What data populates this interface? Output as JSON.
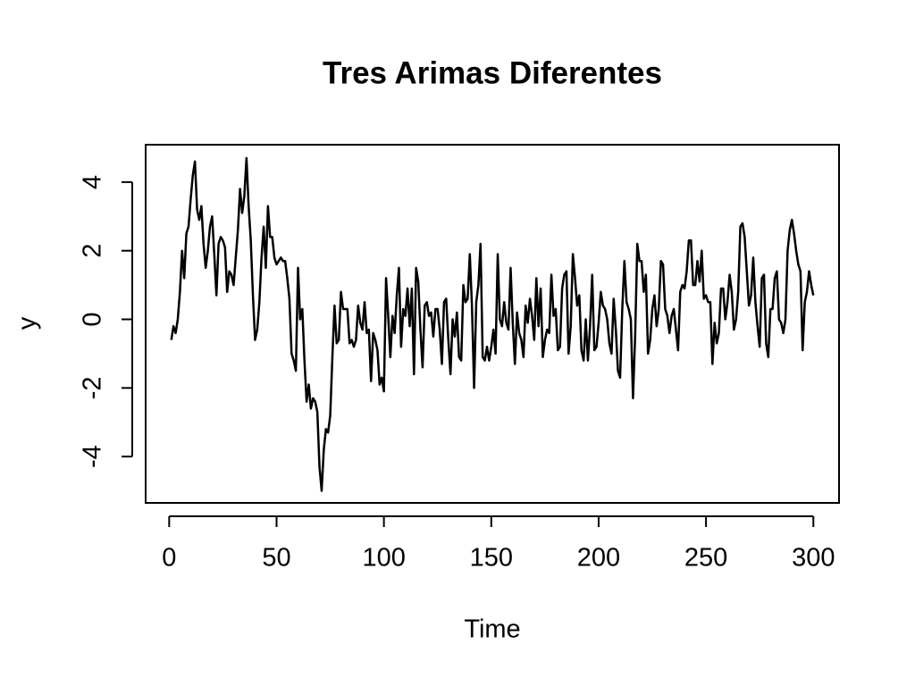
{
  "chart_data": {
    "type": "line",
    "title": "Tres Arimas Diferentes",
    "xlabel": "Time",
    "ylabel": "y",
    "x": [
      1,
      2,
      3,
      4,
      5,
      6,
      7,
      8,
      9,
      10,
      11,
      12,
      13,
      14,
      15,
      16,
      17,
      18,
      19,
      20,
      21,
      22,
      23,
      24,
      25,
      26,
      27,
      28,
      29,
      30,
      31,
      32,
      33,
      34,
      35,
      36,
      37,
      38,
      39,
      40,
      41,
      42,
      43,
      44,
      45,
      46,
      47,
      48,
      49,
      50,
      51,
      52,
      53,
      54,
      55,
      56,
      57,
      58,
      59,
      60,
      61,
      62,
      63,
      64,
      65,
      66,
      67,
      68,
      69,
      70,
      71,
      72,
      73,
      74,
      75,
      76,
      77,
      78,
      79,
      80,
      81,
      82,
      83,
      84,
      85,
      86,
      87,
      88,
      89,
      90,
      91,
      92,
      93,
      94,
      95,
      96,
      97,
      98,
      99,
      100,
      101,
      102,
      103,
      104,
      105,
      106,
      107,
      108,
      109,
      110,
      111,
      112,
      113,
      114,
      115,
      116,
      117,
      118,
      119,
      120,
      121,
      122,
      123,
      124,
      125,
      126,
      127,
      128,
      129,
      130,
      131,
      132,
      133,
      134,
      135,
      136,
      137,
      138,
      139,
      140,
      141,
      142,
      143,
      144,
      145,
      146,
      147,
      148,
      149,
      150,
      151,
      152,
      153,
      154,
      155,
      156,
      157,
      158,
      159,
      160,
      161,
      162,
      163,
      164,
      165,
      166,
      167,
      168,
      169,
      170,
      171,
      172,
      173,
      174,
      175,
      176,
      177,
      178,
      179,
      180,
      181,
      182,
      183,
      184,
      185,
      186,
      187,
      188,
      189,
      190,
      191,
      192,
      193,
      194,
      195,
      196,
      197,
      198,
      199,
      200,
      201,
      202,
      203,
      204,
      205,
      206,
      207,
      208,
      209,
      210,
      211,
      212,
      213,
      214,
      215,
      216,
      217,
      218,
      219,
      220,
      221,
      222,
      223,
      224,
      225,
      226,
      227,
      228,
      229,
      230,
      231,
      232,
      233,
      234,
      235,
      236,
      237,
      238,
      239,
      240,
      241,
      242,
      243,
      244,
      245,
      246,
      247,
      248,
      249,
      250,
      251,
      252,
      253,
      254,
      255,
      256,
      257,
      258,
      259,
      260,
      261,
      262,
      263,
      264,
      265,
      266,
      267,
      268,
      269,
      270,
      271,
      272,
      273,
      274,
      275,
      276,
      277,
      278,
      279,
      280,
      281,
      282,
      283,
      284,
      285,
      286,
      287,
      288,
      289,
      290,
      291,
      292,
      293,
      294,
      295,
      296,
      297,
      298,
      299,
      300
    ],
    "values": [
      -0.6,
      -0.2,
      -0.4,
      0.0,
      0.8,
      2.0,
      1.2,
      2.5,
      2.7,
      3.5,
      4.2,
      4.6,
      3.2,
      2.9,
      3.3,
      2.2,
      1.5,
      2.0,
      2.7,
      3.0,
      1.9,
      0.7,
      2.2,
      2.4,
      2.3,
      2.1,
      0.8,
      1.4,
      1.3,
      1.0,
      1.8,
      2.6,
      3.8,
      3.1,
      3.6,
      4.7,
      3.3,
      2.3,
      0.7,
      -0.6,
      -0.3,
      0.5,
      1.8,
      2.7,
      1.5,
      3.3,
      2.4,
      2.4,
      1.8,
      1.6,
      1.7,
      1.8,
      1.7,
      1.7,
      1.2,
      0.6,
      -1.0,
      -1.2,
      -1.5,
      1.5,
      0.0,
      0.3,
      -1.2,
      -2.4,
      -1.9,
      -2.6,
      -2.3,
      -2.4,
      -2.7,
      -4.3,
      -5.0,
      -3.8,
      -3.2,
      -3.3,
      -2.8,
      -1.1,
      0.4,
      -0.7,
      -0.6,
      0.8,
      0.3,
      0.3,
      0.3,
      -0.7,
      -0.6,
      -0.8,
      -0.6,
      0.4,
      -0.1,
      -0.3,
      0.5,
      -0.4,
      -0.3,
      -1.8,
      -0.4,
      -0.6,
      -0.9,
      -1.9,
      -1.7,
      -2.1,
      1.2,
      0.1,
      -1.1,
      0.1,
      -0.4,
      0.7,
      1.5,
      -0.8,
      0.3,
      0.1,
      0.9,
      -0.2,
      0.9,
      -1.6,
      1.5,
      1.1,
      -0.3,
      -1.4,
      0.4,
      0.5,
      0.1,
      0.2,
      -0.5,
      0.3,
      0.3,
      -0.3,
      -1.3,
      0.5,
      0.6,
      -0.6,
      -1.6,
      0.0,
      -0.5,
      0.2,
      -1.1,
      -1.2,
      1.0,
      0.5,
      0.6,
      1.9,
      0.4,
      -2.0,
      0.5,
      1.0,
      2.2,
      -1.1,
      -1.2,
      -0.8,
      -1.2,
      -0.8,
      -0.3,
      -1.0,
      1.9,
      0.0,
      -0.2,
      0.5,
      -0.1,
      -0.3,
      1.5,
      -0.1,
      -1.3,
      0.2,
      -0.4,
      -0.6,
      -1.1,
      0.4,
      -0.1,
      0.6,
      0.1,
      -0.6,
      1.2,
      -0.2,
      0.9,
      -1.1,
      -0.6,
      -0.3,
      -0.4,
      1.3,
      0.1,
      0.3,
      -0.9,
      -0.8,
      0.9,
      1.3,
      1.4,
      -1.0,
      -0.2,
      1.9,
      1.2,
      0.4,
      0.7,
      -0.9,
      -1.2,
      0.0,
      -1.2,
      -0.2,
      1.3,
      -0.9,
      -0.8,
      -0.1,
      0.8,
      0.4,
      0.3,
      0.0,
      -0.7,
      -1.0,
      0.6,
      -0.3,
      -1.5,
      -1.7,
      0.3,
      1.7,
      0.5,
      0.3,
      0.0,
      -2.3,
      -0.5,
      2.2,
      1.7,
      1.7,
      0.8,
      1.3,
      -1.0,
      -0.6,
      0.3,
      0.7,
      -0.2,
      0.3,
      1.7,
      1.6,
      0.3,
      0.1,
      -0.4,
      0.1,
      0.3,
      -0.3,
      -0.9,
      0.8,
      1.0,
      0.9,
      1.4,
      2.3,
      2.3,
      1.0,
      1.0,
      1.7,
      1.1,
      2.0,
      0.6,
      0.7,
      0.5,
      0.5,
      -1.3,
      -0.1,
      -0.7,
      -0.4,
      0.9,
      0.9,
      0.0,
      0.5,
      1.3,
      0.8,
      -0.3,
      0.0,
      0.8,
      2.7,
      2.8,
      2.4,
      1.4,
      0.4,
      0.7,
      1.8,
      0.5,
      -0.2,
      -0.8,
      1.2,
      1.3,
      -0.7,
      -1.1,
      0.3,
      0.3,
      1.2,
      1.4,
      0.0,
      -0.1,
      -0.4,
      0.0,
      2.0,
      2.6,
      2.9,
      2.5,
      2.0,
      1.6,
      1.4,
      -0.9,
      0.5,
      0.8,
      1.4,
      1.0,
      0.7
    ],
    "color": "#000000",
    "xlim": [
      -10.96,
      311.96
    ],
    "xticks": [
      0,
      50,
      100,
      150,
      200,
      250,
      300
    ],
    "ylim": [
      -5.35,
      5.09
    ],
    "yticks": [
      -4,
      -2,
      0,
      2,
      4
    ]
  }
}
